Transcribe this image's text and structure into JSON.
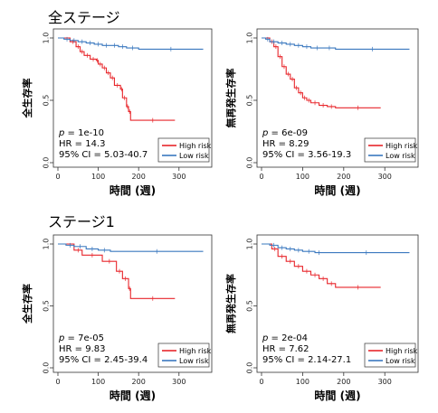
{
  "sections": [
    {
      "title": "全ステージ"
    },
    {
      "title": "ステージ1"
    }
  ],
  "chart_data": [
    {
      "type": "line",
      "xlabel": "時間 (週)",
      "ylabel": "全生存率",
      "xticks": [
        0,
        100,
        200,
        300
      ],
      "yticks": [
        "0.0",
        "0.5",
        "1.0"
      ],
      "xlim": [
        0,
        370
      ],
      "ylim": [
        0,
        1.0
      ],
      "stats": {
        "p_label": "p",
        "p_value": " = 1e-10",
        "hr": "HR = 14.3",
        "ci": "95% CI = 5.03-40.7"
      },
      "legend": [
        "High risk",
        "Low risk"
      ],
      "series": [
        {
          "name": "High risk",
          "color": "#e8262b",
          "x": [
            0,
            30,
            45,
            55,
            65,
            80,
            95,
            100,
            110,
            120,
            130,
            140,
            155,
            160,
            170,
            175,
            180,
            290
          ],
          "y": [
            1.0,
            0.97,
            0.93,
            0.89,
            0.86,
            0.83,
            0.82,
            0.79,
            0.76,
            0.72,
            0.68,
            0.62,
            0.59,
            0.52,
            0.45,
            0.41,
            0.34,
            0.34
          ]
        },
        {
          "name": "Low risk",
          "color": "#3a78bf",
          "x": [
            0,
            15,
            30,
            50,
            70,
            90,
            110,
            130,
            150,
            170,
            200,
            360
          ],
          "y": [
            1.0,
            0.99,
            0.98,
            0.97,
            0.96,
            0.95,
            0.94,
            0.94,
            0.93,
            0.92,
            0.91,
            0.91
          ]
        }
      ]
    },
    {
      "type": "line",
      "xlabel": "時間 (週)",
      "ylabel": "無再発生存率",
      "xticks": [
        0,
        100,
        200,
        300
      ],
      "yticks": [
        "0.0",
        "0.5",
        "1.0"
      ],
      "xlim": [
        0,
        370
      ],
      "ylim": [
        0,
        1.0
      ],
      "stats": {
        "p_label": "p",
        "p_value": " = 6e-09",
        "hr": "HR = 8.29",
        "ci": "95% CI = 3.56-19.3"
      },
      "legend": [
        "High risk",
        "Low risk"
      ],
      "series": [
        {
          "name": "High risk",
          "color": "#e8262b",
          "x": [
            0,
            20,
            30,
            40,
            50,
            60,
            70,
            80,
            90,
            100,
            110,
            120,
            140,
            160,
            180,
            290
          ],
          "y": [
            1.0,
            0.97,
            0.93,
            0.85,
            0.77,
            0.71,
            0.67,
            0.6,
            0.56,
            0.52,
            0.5,
            0.48,
            0.46,
            0.45,
            0.44,
            0.44
          ]
        },
        {
          "name": "Low risk",
          "color": "#3a78bf",
          "x": [
            0,
            10,
            20,
            40,
            60,
            80,
            100,
            120,
            150,
            180,
            360
          ],
          "y": [
            1.0,
            0.99,
            0.97,
            0.96,
            0.95,
            0.94,
            0.93,
            0.92,
            0.92,
            0.91,
            0.91
          ]
        }
      ]
    },
    {
      "type": "line",
      "xlabel": "時間 (週)",
      "ylabel": "全生存率",
      "xticks": [
        0,
        100,
        200,
        300
      ],
      "yticks": [
        "0.0",
        "0.5",
        "1.0"
      ],
      "xlim": [
        0,
        370
      ],
      "ylim": [
        0,
        1.0
      ],
      "stats": {
        "p_label": "p",
        "p_value": " = 7e-05",
        "hr": "HR = 9.83",
        "ci": "95% CI = 2.45-39.4"
      },
      "legend": [
        "High risk",
        "Low risk"
      ],
      "series": [
        {
          "name": "High risk",
          "color": "#e8262b",
          "x": [
            0,
            40,
            60,
            110,
            145,
            160,
            175,
            180,
            290
          ],
          "y": [
            1.0,
            0.95,
            0.91,
            0.86,
            0.78,
            0.72,
            0.64,
            0.56,
            0.56
          ]
        },
        {
          "name": "Low risk",
          "color": "#3a78bf",
          "x": [
            0,
            20,
            40,
            70,
            100,
            130,
            360
          ],
          "y": [
            1.0,
            0.99,
            0.98,
            0.96,
            0.95,
            0.94,
            0.94
          ]
        }
      ]
    },
    {
      "type": "line",
      "xlabel": "時間 (週)",
      "ylabel": "無再発生存率",
      "xticks": [
        0,
        100,
        200,
        300
      ],
      "yticks": [
        "0.0",
        "0.5",
        "1.0"
      ],
      "xlim": [
        0,
        370
      ],
      "ylim": [
        0,
        1.0
      ],
      "stats": {
        "p_label": "p",
        "p_value": " = 2e-04",
        "hr": "HR = 7.62",
        "ci": "95% CI = 2.14-27.1"
      },
      "legend": [
        "High risk",
        "Low risk"
      ],
      "series": [
        {
          "name": "High risk",
          "color": "#e8262b",
          "x": [
            0,
            25,
            40,
            60,
            80,
            100,
            120,
            140,
            160,
            180,
            290
          ],
          "y": [
            1.0,
            0.96,
            0.9,
            0.86,
            0.82,
            0.78,
            0.75,
            0.72,
            0.68,
            0.65,
            0.65
          ]
        },
        {
          "name": "Low risk",
          "color": "#3a78bf",
          "x": [
            0,
            20,
            40,
            60,
            80,
            100,
            130,
            150,
            360
          ],
          "y": [
            1.0,
            0.99,
            0.97,
            0.96,
            0.95,
            0.94,
            0.93,
            0.93,
            0.93
          ]
        }
      ]
    }
  ]
}
